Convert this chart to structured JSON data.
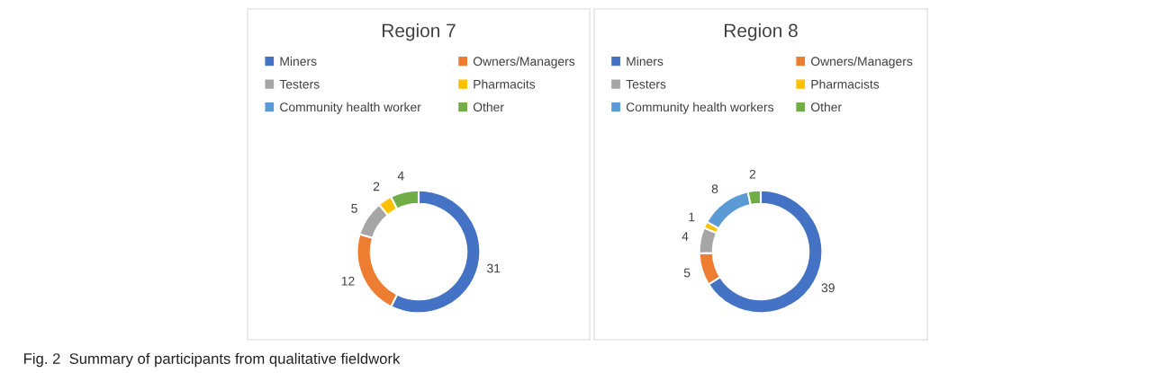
{
  "chart_data": [
    {
      "type": "donut",
      "title": "Region 7",
      "categories": [
        "Miners",
        "Owners/Managers",
        "Testers",
        "Pharmacits",
        "Community health worker",
        "Other"
      ],
      "values": [
        31,
        12,
        5,
        2,
        0,
        4
      ],
      "colors": [
        "#4472c4",
        "#ed7d31",
        "#a5a5a5",
        "#ffc000",
        "#5b9bd5",
        "#70ad47"
      ],
      "value_labels": [
        "31",
        "12",
        "5",
        "2",
        null,
        "4"
      ],
      "legend": "top",
      "annotations": [
        "Fig. 2  Summary of participants from qualitative fieldwork"
      ]
    },
    {
      "type": "donut",
      "title": "Region 8",
      "categories": [
        "Miners",
        "Owners/Managers",
        "Testers",
        "Pharmacists",
        "Community health workers",
        "Other"
      ],
      "values": [
        39,
        5,
        4,
        1,
        8,
        2
      ],
      "colors": [
        "#4472c4",
        "#ed7d31",
        "#a5a5a5",
        "#ffc000",
        "#5b9bd5",
        "#70ad47"
      ],
      "data_labels": true,
      "legend": "top"
    }
  ]
}
